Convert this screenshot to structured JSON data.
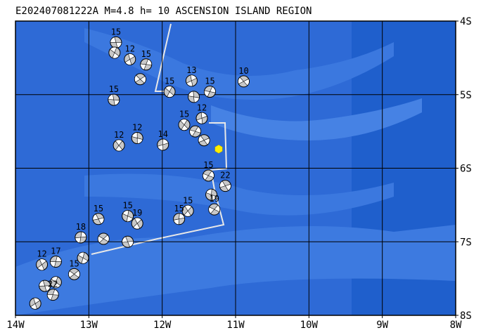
{
  "map": {
    "title": "E202407081222A M=4.8 h= 10 ASCENSION ISLAND REGION",
    "xlim": [
      -14,
      -8
    ],
    "ylim": [
      -8,
      -4
    ],
    "xticks": [
      {
        "value": -14,
        "label": "14W"
      },
      {
        "value": -13,
        "label": "13W"
      },
      {
        "value": -12,
        "label": "12W"
      },
      {
        "value": -11,
        "label": "11W"
      },
      {
        "value": -10,
        "label": "10W"
      },
      {
        "value": -9,
        "label": "9W"
      },
      {
        "value": -8,
        "label": "8W"
      }
    ],
    "yticks": [
      {
        "value": -4,
        "label": "4S"
      },
      {
        "value": -5,
        "label": "5S"
      },
      {
        "value": -6,
        "label": "6S"
      },
      {
        "value": -7,
        "label": "7S"
      },
      {
        "value": -8,
        "label": "8S"
      }
    ],
    "grid": true,
    "epicenter": {
      "lon": -11.23,
      "lat": -5.74,
      "color": "#ffee00"
    },
    "events": [
      {
        "lon": -12.63,
        "lat": -4.29,
        "depth": 15
      },
      {
        "lon": -12.65,
        "lat": -4.43
      },
      {
        "lon": -12.44,
        "lat": -4.52,
        "depth": 12
      },
      {
        "lon": -12.22,
        "lat": -4.59,
        "depth": 15
      },
      {
        "lon": -12.3,
        "lat": -4.79
      },
      {
        "lon": -12.66,
        "lat": -5.07,
        "depth": 15
      },
      {
        "lon": -11.9,
        "lat": -4.96,
        "depth": 15
      },
      {
        "lon": -11.6,
        "lat": -4.81,
        "depth": 13
      },
      {
        "lon": -11.35,
        "lat": -4.96,
        "depth": 15
      },
      {
        "lon": -10.89,
        "lat": -4.82,
        "depth": 10
      },
      {
        "lon": -11.57,
        "lat": -5.03
      },
      {
        "lon": -11.7,
        "lat": -5.41,
        "depth": 15
      },
      {
        "lon": -11.46,
        "lat": -5.32,
        "depth": 12
      },
      {
        "lon": -11.55,
        "lat": -5.5
      },
      {
        "lon": -11.43,
        "lat": -5.62
      },
      {
        "lon": -12.34,
        "lat": -5.59,
        "depth": 12
      },
      {
        "lon": -12.59,
        "lat": -5.69,
        "depth": 12
      },
      {
        "lon": -11.99,
        "lat": -5.68,
        "depth": 14
      },
      {
        "lon": -11.37,
        "lat": -6.1,
        "depth": 15
      },
      {
        "lon": -11.14,
        "lat": -6.24,
        "depth": 22
      },
      {
        "lon": -11.33,
        "lat": -6.36
      },
      {
        "lon": -11.65,
        "lat": -6.58,
        "depth": 15
      },
      {
        "lon": -11.77,
        "lat": -6.69,
        "depth": 15
      },
      {
        "lon": -11.29,
        "lat": -6.56,
        "depth": 19
      },
      {
        "lon": -12.87,
        "lat": -6.69,
        "depth": 15
      },
      {
        "lon": -12.47,
        "lat": -6.65,
        "depth": 15
      },
      {
        "lon": -12.34,
        "lat": -6.75,
        "depth": 19
      },
      {
        "lon": -13.11,
        "lat": -6.94,
        "depth": 18
      },
      {
        "lon": -12.8,
        "lat": -6.96
      },
      {
        "lon": -12.47,
        "lat": -7.0
      },
      {
        "lon": -13.08,
        "lat": -7.22
      },
      {
        "lon": -13.64,
        "lat": -7.31,
        "depth": 12
      },
      {
        "lon": -13.45,
        "lat": -7.27,
        "depth": 17
      },
      {
        "lon": -13.2,
        "lat": -7.44,
        "depth": 15
      },
      {
        "lon": -13.6,
        "lat": -7.6
      },
      {
        "lon": -13.45,
        "lat": -7.55
      },
      {
        "lon": -13.73,
        "lat": -7.84
      },
      {
        "lon": -13.49,
        "lat": -7.72,
        "depth": 22
      }
    ]
  }
}
